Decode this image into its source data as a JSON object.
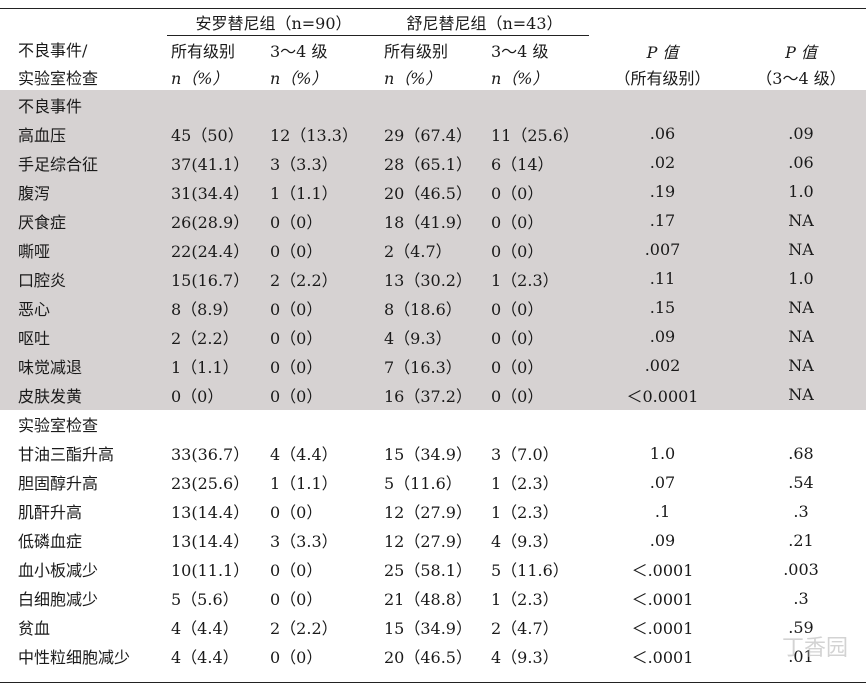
{
  "header": {
    "row_label_line1": "不良事件/",
    "row_label_line2": "实验室检查",
    "group1": "安罗替尼组（n=90）",
    "group2": "舒尼替尼组（n=43）",
    "sub_all": "所有级别",
    "sub_34": "3～4 级",
    "n_pct": "n（%）",
    "p_label": "P 值",
    "p_all": "（所有级别）",
    "p_34": "（3～4 级）"
  },
  "sections": [
    {
      "title": "不良事件",
      "rows": [
        {
          "name": "高血压",
          "a_all": "45（50）",
          "a_34": "12（13.3）",
          "s_all": "29（67.4）",
          "s_34": "11（25.6）",
          "p_all": ".06",
          "p_34": ".09"
        },
        {
          "name": "手足综合征",
          "a_all": "37(41.1）",
          "a_34": "3（3.3）",
          "s_all": "28（65.1）",
          "s_34": "6（14）",
          "p_all": ".02",
          "p_34": ".06"
        },
        {
          "name": "腹泻",
          "a_all": "31(34.4）",
          "a_34": "1（1.1）",
          "s_all": "20（46.5）",
          "s_34": "0（0）",
          "p_all": ".19",
          "p_34": "1.0"
        },
        {
          "name": "厌食症",
          "a_all": "26(28.9）",
          "a_34": "0（0）",
          "s_all": "18（41.9）",
          "s_34": "0（0）",
          "p_all": ".17",
          "p_34": "NA"
        },
        {
          "name": "嘶哑",
          "a_all": "22(24.4）",
          "a_34": "0（0）",
          "s_all": "2（4.7）",
          "s_34": "0（0）",
          "p_all": ".007",
          "p_34": "NA"
        },
        {
          "name": "口腔炎",
          "a_all": "15(16.7）",
          "a_34": "2（2.2）",
          "s_all": "13（30.2）",
          "s_34": "1（2.3）",
          "p_all": ".11",
          "p_34": "1.0"
        },
        {
          "name": "恶心",
          "a_all": "8（8.9）",
          "a_34": "0（0）",
          "s_all": "8（18.6）",
          "s_34": "0（0）",
          "p_all": ".15",
          "p_34": "NA"
        },
        {
          "name": "呕吐",
          "a_all": "2（2.2）",
          "a_34": "0（0）",
          "s_all": "4（9.3）",
          "s_34": "0（0）",
          "p_all": ".09",
          "p_34": "NA"
        },
        {
          "name": "味觉减退",
          "a_all": "1（1.1）",
          "a_34": "0（0）",
          "s_all": "7（16.3）",
          "s_34": "0（0）",
          "p_all": ".002",
          "p_34": "NA"
        },
        {
          "name": "皮肤发黄",
          "a_all": "0（0）",
          "a_34": "0（0）",
          "s_all": "16（37.2）",
          "s_34": "0（0）",
          "p_all": "＜0.0001",
          "p_34": "NA"
        }
      ]
    },
    {
      "title": "实验室检查",
      "rows": [
        {
          "name": "甘油三酯升高",
          "a_all": "33(36.7）",
          "a_34": "4（4.4）",
          "s_all": "15（34.9）",
          "s_34": "3（7.0）",
          "p_all": "1.0",
          "p_34": ".68"
        },
        {
          "name": "胆固醇升高",
          "a_all": "23(25.6）",
          "a_34": "1（1.1）",
          "s_all": "5（11.6）",
          "s_34": "1（2.3）",
          "p_all": ".07",
          "p_34": ".54"
        },
        {
          "name": "肌酐升高",
          "a_all": "13(14.4）",
          "a_34": "0（0）",
          "s_all": "12（27.9）",
          "s_34": "1（2.3）",
          "p_all": ".1",
          "p_34": ".3"
        },
        {
          "name": "低磷血症",
          "a_all": "13(14.4）",
          "a_34": "3（3.3）",
          "s_all": "12（27.9）",
          "s_34": "4（9.3）",
          "p_all": ".09",
          "p_34": ".21"
        },
        {
          "name": "血小板减少",
          "a_all": "10(11.1）",
          "a_34": "0（0）",
          "s_all": "25（58.1）",
          "s_34": "5（11.6）",
          "p_all": "＜.0001",
          "p_34": ".003"
        },
        {
          "name": "白细胞减少",
          "a_all": "5（5.6）",
          "a_34": "0（0）",
          "s_all": "21（48.8）",
          "s_34": "1（2.3）",
          "p_all": "＜.0001",
          "p_34": ".3"
        },
        {
          "name": "贫血",
          "a_all": "4（4.4）",
          "a_34": "2（2.2）",
          "s_all": "15（34.9）",
          "s_34": "2（4.7）",
          "p_all": "＜.0001",
          "p_34": ".59"
        },
        {
          "name": "中性粒细胞减少",
          "a_all": "4（4.4）",
          "a_34": "0（0）",
          "s_all": "20（46.5）",
          "s_34": "4（9.3）",
          "p_all": "＜.0001",
          "p_34": ".01"
        }
      ]
    }
  ],
  "watermark": "丁香园"
}
